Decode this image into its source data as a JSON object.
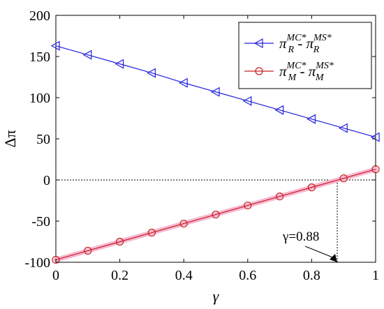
{
  "chart_data": {
    "type": "line",
    "xlabel": "γ",
    "ylabel": "Δπ",
    "xlim": [
      0,
      1
    ],
    "ylim": [
      -100,
      200
    ],
    "x_ticks": [
      0,
      0.2,
      0.4,
      0.6,
      0.8,
      1
    ],
    "x_tick_labels": [
      "0",
      "0.2",
      "0.4",
      "0.6",
      "0.8",
      "1"
    ],
    "y_ticks": [
      -100,
      -50,
      0,
      50,
      100,
      150,
      200
    ],
    "y_tick_labels": [
      "-100",
      "-50",
      "0",
      "50",
      "100",
      "150",
      "200"
    ],
    "grid": false,
    "legend_position": "top-right",
    "x": [
      0,
      0.1,
      0.2,
      0.3,
      0.4,
      0.5,
      0.6,
      0.7,
      0.8,
      0.9,
      1.0
    ],
    "series": [
      {
        "id": "R",
        "legend": {
          "base": "π",
          "sup1": "MC*",
          "sub1": "R",
          "sep": " - ",
          "sup2": "MS*",
          "sub2": "R"
        },
        "marker": "triangle-left",
        "color": "#2020e0",
        "values": [
          163,
          152,
          141,
          130,
          118,
          107,
          96,
          85,
          74,
          63,
          52
        ]
      },
      {
        "id": "M",
        "legend": {
          "base": "π",
          "sup1": "MC*",
          "sub1": "M",
          "sep": " - ",
          "sup2": "MS*",
          "sub2": "M"
        },
        "marker": "circle",
        "color": "#c82020",
        "values": [
          -97,
          -86,
          -75,
          -64,
          -53,
          -42,
          -31,
          -20,
          -9,
          2,
          13
        ]
      }
    ],
    "reference_lines": [
      {
        "y": 0,
        "style": "dotted"
      }
    ],
    "annotation": {
      "text": "γ=0.88",
      "x": 0.88,
      "y": -100
    }
  }
}
